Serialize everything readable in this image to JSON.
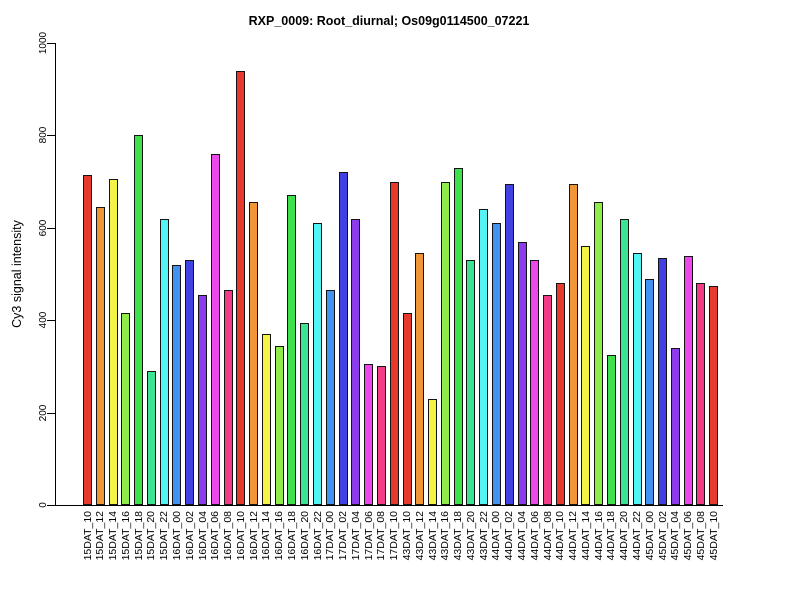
{
  "chart_data": {
    "type": "bar",
    "title": "RXP_0009: Root_diurnal; Os09g0114500_07221",
    "xlabel": "",
    "ylabel": "Cy3 signal intensity",
    "ylim": [
      0,
      1000
    ],
    "yticks": [
      0,
      200,
      400,
      600,
      800,
      1000
    ],
    "grid": false,
    "legend": "none",
    "background_color": "#FFFFFF",
    "axis_color": "#000000",
    "bar_border_color": "#141414",
    "color_cycle": [
      "#E8392F",
      "#F09636",
      "#F4F446",
      "#90EC48",
      "#3CE14C",
      "#3CE392",
      "#55F4F4",
      "#4292F2",
      "#4140E0",
      "#8C3CEC",
      "#EC48EC",
      "#F23C88"
    ],
    "categories": [
      "15DAT_10",
      "15DAT_12",
      "15DAT_14",
      "15DAT_16",
      "15DAT_18",
      "15DAT_20",
      "15DAT_22",
      "16DAT_00",
      "16DAT_02",
      "16DAT_04",
      "16DAT_06",
      "16DAT_08",
      "16DAT_10",
      "16DAT_12",
      "16DAT_14",
      "16DAT_16",
      "16DAT_18",
      "16DAT_20",
      "16DAT_22",
      "17DAT_00",
      "17DAT_02",
      "17DAT_04",
      "17DAT_06",
      "17DAT_08",
      "17DAT_10",
      "43DAT_10",
      "43DAT_12",
      "43DAT_14",
      "43DAT_16",
      "43DAT_18",
      "43DAT_20",
      "43DAT_22",
      "44DAT_00",
      "44DAT_02",
      "44DAT_04",
      "44DAT_06",
      "44DAT_08",
      "44DAT_10",
      "44DAT_12",
      "44DAT_14",
      "44DAT_16",
      "44DAT_18",
      "44DAT_20",
      "44DAT_22",
      "45DAT_00",
      "45DAT_02",
      "45DAT_04",
      "45DAT_06",
      "45DAT_08",
      "45DAT_10"
    ],
    "values": [
      715,
      645,
      705,
      415,
      800,
      290,
      620,
      520,
      530,
      455,
      760,
      465,
      940,
      655,
      370,
      345,
      670,
      395,
      610,
      465,
      720,
      620,
      305,
      300,
      700,
      415,
      545,
      230,
      700,
      730,
      530,
      640,
      610,
      695,
      570,
      530,
      455,
      480,
      695,
      560,
      655,
      325,
      620,
      545,
      490,
      535,
      340,
      540,
      480,
      475
    ],
    "colors": [
      "#E8392F",
      "#F09636",
      "#F4F446",
      "#90EC48",
      "#3CE14C",
      "#3CE392",
      "#55F4F4",
      "#4292F2",
      "#4140E0",
      "#8C3CEC",
      "#EC48EC",
      "#F23C88",
      "#E8392F",
      "#F09636",
      "#F4F446",
      "#90EC48",
      "#3CE14C",
      "#3CE392",
      "#55F4F4",
      "#4292F2",
      "#4140E0",
      "#8C3CEC",
      "#EC48EC",
      "#F23C88",
      "#E8392F",
      "#E8392F",
      "#F09636",
      "#F4F446",
      "#90EC48",
      "#3CE14C",
      "#3CE392",
      "#55F4F4",
      "#4292F2",
      "#4140E0",
      "#8C3CEC",
      "#EC48EC",
      "#F23C88",
      "#E8392F",
      "#F09636",
      "#F4F446",
      "#90EC48",
      "#3CE14C",
      "#3CE392",
      "#55F4F4",
      "#4292F2",
      "#4140E0",
      "#8C3CEC",
      "#EC48EC",
      "#F23C88",
      "#E8392F"
    ]
  }
}
